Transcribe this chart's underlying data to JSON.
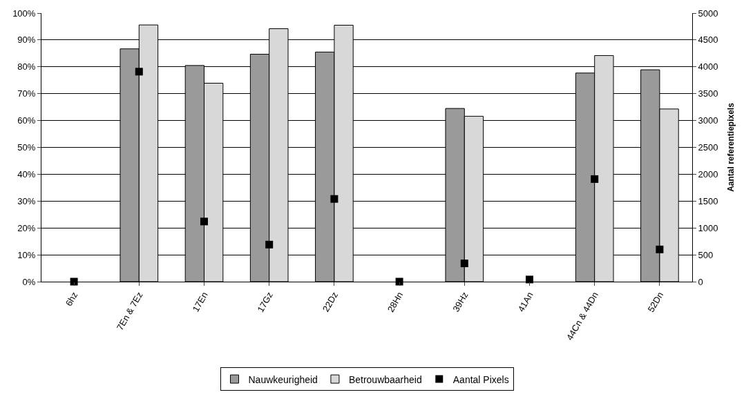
{
  "chart_data": {
    "type": "bar",
    "categories": [
      "6hz",
      "7En & 7Ez",
      "17En",
      "17Gz",
      "22Dz",
      "28Hn",
      "39Hz",
      "41An",
      "44Cn & 44Dn",
      "52Dn"
    ],
    "series": [
      {
        "name": "Nauwkeurigheid",
        "color": "#9a9a9a",
        "values": [
          null,
          86.7,
          80.5,
          84.7,
          85.5,
          null,
          64.5,
          null,
          77.7,
          78.9
        ]
      },
      {
        "name": "Betrouwbaarheid",
        "color": "#d8d8d8",
        "values": [
          null,
          95.6,
          73.9,
          94.2,
          95.5,
          null,
          61.6,
          null,
          84.2,
          64.3
        ]
      },
      {
        "name": "Aantal Pixels",
        "type": "scatter",
        "axis": "y2",
        "marker": "square",
        "color": "#000000",
        "values": [
          0,
          3910,
          1120,
          690,
          1540,
          0,
          340,
          40,
          1910,
          600
        ]
      }
    ],
    "y2label": "Aantal referentiepixels",
    "ylim": [
      0,
      100
    ],
    "yticks": [
      {
        "value": 0,
        "label": "0%"
      },
      {
        "value": 10,
        "label": "10%"
      },
      {
        "value": 20,
        "label": "20%"
      },
      {
        "value": 30,
        "label": "30%"
      },
      {
        "value": 40,
        "label": "40%"
      },
      {
        "value": 50,
        "label": "50%"
      },
      {
        "value": 60,
        "label": "60%"
      },
      {
        "value": 70,
        "label": "70%"
      },
      {
        "value": 80,
        "label": "80%"
      },
      {
        "value": 90,
        "label": "90%"
      },
      {
        "value": 100,
        "label": "100%"
      }
    ],
    "y2lim": [
      0,
      5000
    ],
    "y2ticks": [
      0,
      500,
      1000,
      1500,
      2000,
      2500,
      3000,
      3500,
      4000,
      4500,
      5000
    ],
    "grid": "y",
    "legend": "bottom"
  }
}
